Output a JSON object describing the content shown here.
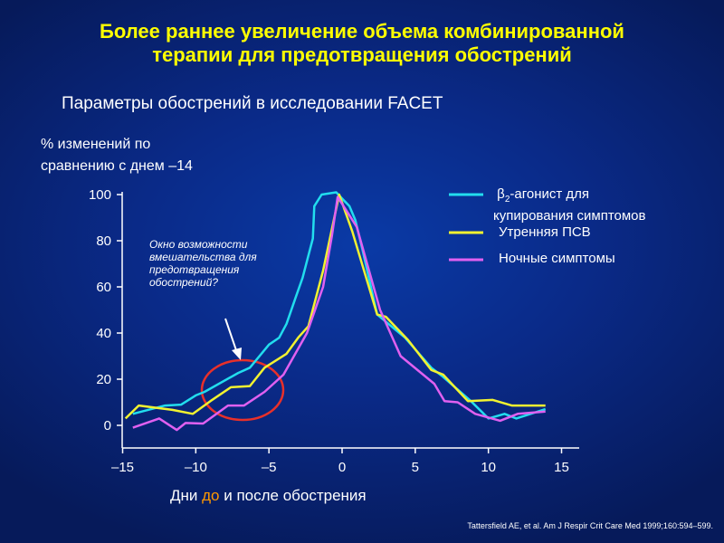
{
  "title_line1": "Более раннее увеличение объема комбинированной",
  "title_line2": "терапии для предотвращения обострений",
  "subtitle": "Параметры обострений в исследовании FACET",
  "citation": "Tattersfield AE, et al. Am J Respir Crit Care Med 1999;160:594–599.",
  "chart_data": {
    "type": "line",
    "ylabel_line1": "% изменений по",
    "ylabel_line2": "сравнению с днем –14",
    "xlabel_pre": "Дни ",
    "xlabel_highlight": "до",
    "xlabel_post": " и после обострения",
    "xlim": [
      -15,
      15
    ],
    "ylim": [
      0,
      100
    ],
    "xticks": [
      "–15",
      "–10",
      "–5",
      "0",
      "5",
      "10",
      "15"
    ],
    "xtick_values": [
      -15,
      -10,
      -5,
      0,
      5,
      10,
      15
    ],
    "yticks": [
      "0",
      "20",
      "40",
      "60",
      "80",
      "100"
    ],
    "ytick_values": [
      0,
      20,
      40,
      60,
      80,
      100
    ],
    "annotation": [
      "Окно возможности",
      "вмешательства для",
      "предотвращения",
      "обострений?"
    ],
    "series": [
      {
        "name": "β2-агонист для купирования симптомов",
        "legend_main": "β",
        "legend_sub": "2",
        "legend_rest": "-агонист для",
        "legend_line2": "купирования симптомов",
        "color": "#22ddee",
        "x": [
          -14.3,
          -12.1,
          -11,
          -10,
          -9.4,
          -7.1,
          -6.3,
          -5,
          -4.3,
          -3.8,
          -3.2,
          -2.7,
          -2,
          -1.9,
          -1.4,
          -0.4,
          0.5,
          0.9,
          1.4,
          2.4,
          4.3,
          6.1,
          6.9,
          8.8,
          10,
          11.1,
          11.9,
          13.9
        ],
        "y": [
          5,
          8.6,
          9,
          13,
          14.5,
          22.7,
          25,
          35,
          38,
          44,
          55,
          64,
          81,
          95,
          100,
          101,
          95,
          89,
          76,
          48,
          38,
          25,
          21,
          10.5,
          3,
          5,
          3,
          7
        ]
      },
      {
        "name": "Утренняя ПСВ",
        "color": "#f2f230",
        "x": [
          -14.8,
          -13.9,
          -11.6,
          -10.2,
          -9,
          -7.6,
          -6.3,
          -5.3,
          -3.8,
          -3,
          -2.3,
          -1.3,
          -0.2,
          0.7,
          2.4,
          3,
          4.5,
          6.1,
          6.9,
          8.6,
          10.3,
          11.6,
          13.9
        ],
        "y": [
          3,
          8.6,
          6.7,
          5,
          10.5,
          16.5,
          17,
          25,
          31,
          38,
          43,
          67,
          100,
          84,
          48,
          47,
          37,
          24,
          22,
          10.5,
          11,
          8.6,
          8.6
        ]
      },
      {
        "name": "Ночные симптомы",
        "color": "#e060f0",
        "x": [
          -14.3,
          -12.5,
          -11.3,
          -10.7,
          -9.5,
          -7.8,
          -6.7,
          -5.3,
          -4,
          -2.4,
          -1.3,
          -0.7,
          -0.3,
          1,
          2.6,
          4,
          6.3,
          7,
          7.9,
          9.1,
          10.8,
          12,
          13.9
        ],
        "y": [
          -1,
          3,
          -2,
          1,
          0.8,
          8.6,
          8.6,
          14.5,
          22,
          40,
          60,
          82,
          99,
          86,
          50,
          30,
          18,
          10.5,
          10,
          5,
          2,
          5,
          6
        ]
      }
    ]
  }
}
